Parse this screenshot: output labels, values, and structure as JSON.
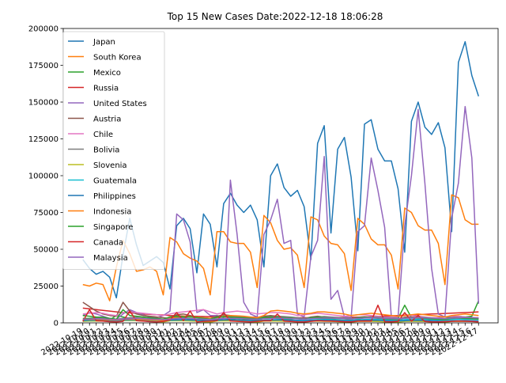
{
  "chart_data": {
    "type": "line",
    "title": "Top 15 New Cases Date:2022-12-18 18:06:28",
    "xlabel": "",
    "ylabel": "",
    "ylim": [
      0,
      200000
    ],
    "yticks": [
      0,
      25000,
      50000,
      75000,
      100000,
      125000,
      150000,
      175000,
      200000
    ],
    "ytick_labels": [
      "0",
      "25000",
      "50000",
      "75000",
      "100000",
      "125000",
      "150000",
      "175000",
      "200000"
    ],
    "x": [
      "2022-10-19",
      "2022-10-20",
      "2022-10-21",
      "2022-10-22",
      "2022-10-23",
      "2022-10-24",
      "2022-10-25",
      "2022-10-26",
      "2022-10-27",
      "2022-10-28",
      "2022-10-29",
      "2022-10-30",
      "2022-10-31",
      "2022-11-01",
      "2022-11-02",
      "2022-11-03",
      "2022-11-04",
      "2022-11-05",
      "2022-11-06",
      "2022-11-07",
      "2022-11-08",
      "2022-11-09",
      "2022-11-10",
      "2022-11-11",
      "2022-11-12",
      "2022-11-13",
      "2022-11-14",
      "2022-11-15",
      "2022-11-16",
      "2022-11-17",
      "2022-11-18",
      "2022-11-19",
      "2022-11-20",
      "2022-11-21",
      "2022-11-22",
      "2022-11-23",
      "2022-11-24",
      "2022-11-25",
      "2022-11-26",
      "2022-11-27",
      "2022-11-28",
      "2022-11-29",
      "2022-11-30",
      "2022-12-01",
      "2022-12-02",
      "2022-12-03",
      "2022-12-04",
      "2022-12-05",
      "2022-12-06",
      "2022-12-07",
      "2022-12-08",
      "2022-12-09",
      "2022-12-10",
      "2022-12-11",
      "2022-12-12",
      "2022-12-13",
      "2022-12-14",
      "2022-12-15",
      "2022-12-16",
      "2022-12-17"
    ],
    "grid": false,
    "legend_position": "upper left",
    "series": [
      {
        "name": "Japan",
        "color": "#1f77b4",
        "values": [
          43000,
          37000,
          33000,
          35000,
          31000,
          17000,
          46000,
          71000,
          53000,
          39000,
          42000,
          45000,
          41000,
          23000,
          66000,
          71000,
          64000,
          34000,
          74000,
          67000,
          38000,
          81000,
          88000,
          80000,
          75000,
          80000,
          70000,
          38000,
          100000,
          108000,
          92000,
          86000,
          90000,
          79000,
          43000,
          122000,
          134000,
          61000,
          118000,
          126000,
          99000,
          49000,
          135000,
          138000,
          118000,
          110000,
          110000,
          91000,
          48000,
          137000,
          150000,
          133000,
          128000,
          136000,
          119000,
          62000,
          177000,
          191000,
          168000,
          154000
        ]
      },
      {
        "name": "South Korea",
        "color": "#ff7f0e",
        "values": [
          26000,
          25000,
          27000,
          26000,
          15000,
          38000,
          56000,
          47000,
          35000,
          36000,
          38000,
          35000,
          19000,
          58000,
          55000,
          47000,
          44000,
          42000,
          37000,
          19000,
          62000,
          62000,
          55000,
          54000,
          54000,
          48000,
          24000,
          73000,
          68000,
          56000,
          50000,
          51000,
          46000,
          24000,
          72000,
          70000,
          59000,
          54000,
          53000,
          47000,
          22000,
          71000,
          67000,
          57000,
          53000,
          53000,
          46000,
          23000,
          78000,
          75000,
          66000,
          63000,
          63000,
          54000,
          26000,
          87000,
          85000,
          70000,
          67000,
          67000
        ]
      },
      {
        "name": "Mexico",
        "color": "#2ca02c",
        "values": [
          3000,
          3000,
          3500,
          2500,
          2000,
          5000,
          4000,
          3000,
          3000,
          2500,
          2000,
          1500,
          2000,
          2500,
          3000,
          3500,
          2500,
          2000,
          2500,
          3000,
          2500,
          2000,
          2500,
          3000,
          2500,
          2000,
          2000,
          3000,
          3500,
          3000,
          2500,
          2500,
          3000,
          2500,
          3500,
          3000,
          3000,
          2500,
          3000,
          3500,
          3000,
          2500,
          3500,
          4000,
          3500,
          3000,
          3500,
          3000,
          12000,
          3500,
          4000,
          3500,
          3000,
          3500,
          4000,
          3500,
          4500,
          4000,
          4500,
          15000
        ]
      },
      {
        "name": "Russia",
        "color": "#d62728",
        "values": [
          10000,
          9500,
          9000,
          8500,
          8000,
          7500,
          7000,
          6800,
          6500,
          6000,
          5800,
          5500,
          5300,
          5000,
          4800,
          4600,
          4500,
          4400,
          4300,
          4200,
          4100,
          4000,
          4000,
          3900,
          3900,
          3800,
          3800,
          3700,
          3700,
          3600,
          3600,
          3600,
          3500,
          3500,
          3500,
          3500,
          3500,
          3600,
          3600,
          3700,
          3800,
          3900,
          4000,
          4200,
          4400,
          4600,
          4800,
          5000,
          5200,
          5400,
          5600,
          5800,
          6000,
          6200,
          6400,
          6600,
          6800,
          7000,
          7200,
          7500
        ]
      },
      {
        "name": "United States",
        "color": "#9467bd",
        "values": [
          5000,
          7000,
          6000,
          4500,
          3000,
          2500,
          6000,
          9000,
          7000,
          5500,
          4000,
          3500,
          5000,
          8000,
          74000,
          70000,
          55000,
          7000,
          9000,
          5000,
          5000,
          3500,
          97000,
          60000,
          14000,
          6000,
          4000,
          60000,
          70000,
          84000,
          54000,
          56000,
          6000,
          4000,
          45000,
          56000,
          113000,
          16000,
          22000,
          4000,
          3500,
          62000,
          66000,
          112000,
          90000,
          65000,
          4000,
          4000,
          66000,
          100000,
          145000,
          95000,
          37000,
          6000,
          4000,
          71000,
          95000,
          147000,
          112000,
          13000
        ]
      },
      {
        "name": "Austria",
        "color": "#8c564b",
        "values": [
          14000,
          11000,
          8000,
          6000,
          5000,
          4500,
          14000,
          8000,
          6000,
          5000,
          4500,
          4000,
          3500,
          3000,
          5500,
          6000,
          5000,
          4000,
          3500,
          3000,
          4500,
          5500,
          5000,
          4000,
          3500,
          3000,
          3000,
          4500,
          5000,
          4500,
          4000,
          3500,
          3000,
          2800,
          4000,
          4500,
          4000,
          3500,
          3000,
          2800,
          2500,
          3800,
          4200,
          3800,
          3500,
          3000,
          2800,
          2500,
          3800,
          4000,
          3800,
          3500,
          3000,
          2800,
          2500,
          3600,
          3800,
          3500,
          3200,
          3000
        ]
      },
      {
        "name": "Chile",
        "color": "#e377c2",
        "values": [
          6000,
          6500,
          7000,
          6500,
          5500,
          5000,
          7000,
          7500,
          7000,
          6500,
          6000,
          5500,
          5000,
          6000,
          7000,
          7500,
          8000,
          8500,
          9000,
          7500,
          6000,
          7000,
          7500,
          8000,
          7500,
          7000,
          6000,
          6500,
          7000,
          7000,
          6500,
          6000,
          5000,
          5500,
          6000,
          6500,
          6000,
          5500,
          5000,
          4500,
          5000,
          5500,
          5500,
          5000,
          4500,
          4000,
          4000,
          4500,
          5000,
          5000,
          4500,
          4000,
          3500,
          3500,
          4000,
          4500,
          4500,
          4000,
          3500,
          3500
        ]
      },
      {
        "name": "Bolivia",
        "color": "#7f7f7f",
        "values": [
          2000,
          2500,
          3000,
          3200,
          3000,
          2500,
          3000,
          3500,
          3800,
          3600,
          3200,
          2800,
          2500,
          3000,
          3500,
          3800,
          4000,
          3800,
          3500,
          3000,
          3500,
          4000,
          4500,
          4200,
          4000,
          3500,
          3000,
          3800,
          4200,
          4500,
          4300,
          4000,
          3500,
          3000,
          3600,
          4000,
          4300,
          4000,
          3700,
          3300,
          3000,
          3500,
          3800,
          4000,
          3800,
          3500,
          3200,
          3000,
          3400,
          3700,
          3900,
          3700,
          3400,
          3100,
          2900,
          3300,
          3600,
          3800,
          3600,
          3400
        ]
      },
      {
        "name": "Slovenia",
        "color": "#bcbd22",
        "values": [
          1000,
          1200,
          1300,
          1200,
          800,
          600,
          1500,
          1600,
          1500,
          1300,
          1100,
          800,
          600,
          1400,
          1500,
          1400,
          1300,
          1100,
          700,
          500,
          1300,
          1400,
          1300,
          1200,
          1000,
          700,
          500,
          1200,
          1300,
          1200,
          1100,
          900,
          600,
          400,
          1100,
          1200,
          1100,
          1000,
          800,
          500,
          400,
          1000,
          1100,
          1000,
          900,
          700,
          500,
          400,
          1000,
          1100,
          1000,
          900,
          700,
          500,
          400,
          1000,
          1100,
          1000,
          900,
          700
        ]
      },
      {
        "name": "Guatemala",
        "color": "#17becf",
        "values": [
          1500,
          1600,
          1800,
          1700,
          1500,
          1300,
          1700,
          1900,
          2000,
          1800,
          1600,
          1400,
          1300,
          1700,
          1900,
          2000,
          1900,
          1700,
          1500,
          1400,
          1800,
          2000,
          2100,
          2000,
          1800,
          1600,
          1500,
          1900,
          2100,
          2200,
          2100,
          1900,
          1700,
          1600,
          2000,
          2200,
          2300,
          2200,
          2000,
          1800,
          1700,
          2100,
          2300,
          2400,
          2300,
          2100,
          1900,
          1800,
          2200,
          2400,
          2500,
          2400,
          2200,
          2000,
          1900,
          2300,
          2500,
          2600,
          2500,
          2300
        ]
      },
      {
        "name": "Philippines",
        "color": "#1f77b4",
        "values": [
          1800,
          1900,
          2000,
          1900,
          1700,
          1600,
          2000,
          2200,
          2300,
          2100,
          1900,
          1700,
          1600,
          2000,
          2100,
          2200,
          2100,
          1900,
          1700,
          1600,
          1900,
          2000,
          2100,
          2000,
          1800,
          1600,
          1500,
          1800,
          1900,
          2000,
          1900,
          1700,
          1500,
          1400,
          1700,
          1800,
          1900,
          1800,
          1600,
          1400,
          1300,
          1600,
          1700,
          1800,
          1700,
          1500,
          1300,
          1200,
          1500,
          1600,
          1700,
          1600,
          1400,
          1200,
          1100,
          1400,
          1500,
          1600,
          1500,
          1300
        ]
      },
      {
        "name": "Indonesia",
        "color": "#ff7f0e",
        "values": [
          2500,
          2300,
          2400,
          2200,
          2000,
          1900,
          2300,
          2500,
          2400,
          2200,
          2000,
          1800,
          1700,
          3000,
          4000,
          4500,
          4200,
          3800,
          3400,
          3000,
          3500,
          4500,
          5000,
          4800,
          4500,
          4000,
          3500,
          5000,
          8000,
          8500,
          8000,
          7500,
          6500,
          6000,
          6500,
          7500,
          7500,
          7000,
          6500,
          6000,
          5000,
          5500,
          6000,
          6500,
          6000,
          5500,
          5000,
          4500,
          5000,
          5500,
          6000,
          5500,
          5000,
          4500,
          4000,
          5000,
          5500,
          6000,
          5500,
          5000
        ]
      },
      {
        "name": "Singapore",
        "color": "#2ca02c",
        "values": [
          5000,
          4500,
          4000,
          3800,
          3000,
          2500,
          9000,
          5000,
          4500,
          4000,
          3500,
          3000,
          2500,
          4000,
          4500,
          4200,
          4000,
          3500,
          3000,
          2500,
          3800,
          4200,
          4000,
          3700,
          3400,
          3000,
          2600,
          3700,
          4000,
          3800,
          3500,
          3200,
          2800,
          2500,
          3500,
          3800,
          3600,
          3300,
          3000,
          2700,
          2400,
          3300,
          3600,
          3400,
          3100,
          2800,
          2500,
          2300,
          3200,
          3400,
          3200,
          3000,
          2700,
          2400,
          2200,
          3000,
          3200,
          3000,
          2800,
          2600
        ]
      },
      {
        "name": "Canada",
        "color": "#d62728",
        "values": [
          1000,
          9000,
          1500,
          1200,
          800,
          600,
          1000,
          8000,
          1500,
          1200,
          800,
          600,
          1000,
          2000,
          7000,
          1500,
          8000,
          600,
          1000,
          1200,
          1500,
          7000,
          1300,
          1000,
          800,
          700,
          1000,
          1500,
          1400,
          6000,
          1200,
          900,
          700,
          600,
          1000,
          1500,
          1300,
          1200,
          1000,
          800,
          700,
          1200,
          1300,
          1200,
          12000,
          800,
          700,
          1000,
          7000,
          1200,
          5000,
          900,
          700,
          600,
          800,
          1000,
          1200,
          1100,
          900,
          700
        ]
      },
      {
        "name": "Malaysia",
        "color": "#9467bd",
        "values": [
          2500,
          2600,
          2800,
          2700,
          2400,
          2200,
          2600,
          2800,
          3000,
          2800,
          2600,
          2400,
          2200,
          2600,
          2800,
          3000,
          2900,
          2700,
          2500,
          2300,
          2700,
          2900,
          3100,
          3000,
          2800,
          2600,
          2400,
          2800,
          3000,
          3200,
          3100,
          2900,
          2700,
          2500,
          2900,
          3100,
          3300,
          3200,
          3000,
          2800,
          2600,
          3000,
          3200,
          3400,
          3300,
          3100,
          2900,
          2700,
          3100,
          3300,
          3500,
          3400,
          3200,
          3000,
          2800,
          3200,
          3400,
          3600,
          3500,
          3300
        ]
      }
    ]
  }
}
